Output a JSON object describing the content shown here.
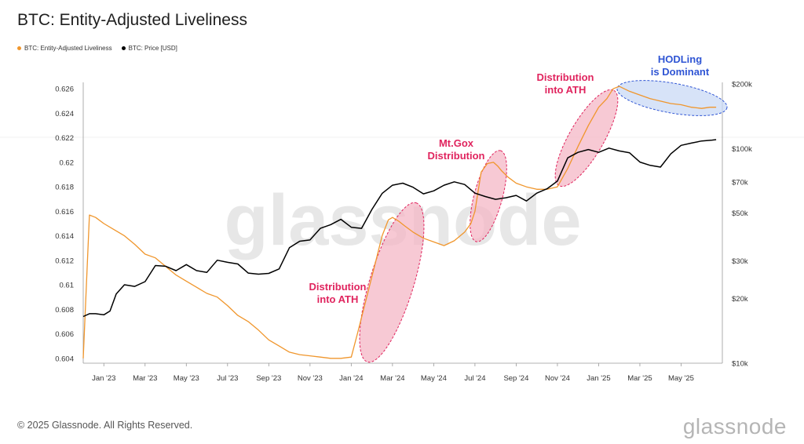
{
  "title": "BTC: Entity-Adjusted Liveliness",
  "footer": "© 2025 Glassnode. All Rights Reserved.",
  "brand": "glassnode",
  "watermark": "glassnode",
  "colors": {
    "liveliness": "#f0962c",
    "price": "#000000",
    "highlight_pink": "#f4b7c6",
    "highlight_blue": "#c9daf6",
    "annotation_pink": "#e0245e",
    "annotation_blue": "#2f55d4"
  },
  "chart_data": {
    "type": "line",
    "title": "BTC: Entity-Adjusted Liveliness",
    "x_ticks": [
      "Jan '23",
      "Mar '23",
      "May '23",
      "Jul '23",
      "Sep '23",
      "Nov '23",
      "Jan '24",
      "Mar '24",
      "May '24",
      "Jul '24",
      "Sep '24",
      "Nov '24",
      "Jan '25",
      "Mar '25",
      "May '25"
    ],
    "x_tick_index": [
      1,
      3,
      5,
      7,
      9,
      11,
      13,
      15,
      17,
      19,
      21,
      23,
      25,
      27,
      29
    ],
    "x_range": [
      0,
      31
    ],
    "y_left_ticks": [
      "0.626",
      "0.624",
      "0.622",
      "0.62",
      "0.618",
      "0.616",
      "0.614",
      "0.612",
      "0.61",
      "0.608",
      "0.606",
      "0.604"
    ],
    "y_left_range": [
      0.6036,
      0.6264
    ],
    "y_right_ticks": [
      {
        "label": "$200k",
        "value": 200000
      },
      {
        "label": "$100k",
        "value": 100000
      },
      {
        "label": "$70k",
        "value": 70000
      },
      {
        "label": "$50k",
        "value": 50000
      },
      {
        "label": "$30k",
        "value": 30000
      },
      {
        "label": "$20k",
        "value": 20000
      },
      {
        "label": "$10k",
        "value": 10000
      }
    ],
    "y_right_scale": "log",
    "y_right_range": [
      10000,
      200000
    ],
    "grid": false,
    "legend_position": "top-left",
    "series": [
      {
        "name": "BTC: Entity-Adjusted Liveliness",
        "axis": "left",
        "color": "#f0962c",
        "x": [
          0.0,
          0.3,
          0.6,
          1.0,
          1.5,
          2.0,
          2.5,
          3.0,
          3.5,
          4.0,
          4.5,
          5.0,
          5.5,
          6.0,
          6.5,
          7.0,
          7.5,
          8.0,
          8.5,
          9.0,
          9.5,
          10.0,
          10.5,
          11.0,
          11.5,
          12.0,
          12.5,
          13.0,
          13.3,
          13.6,
          13.9,
          14.2,
          14.5,
          14.8,
          15.0,
          15.3,
          15.6,
          16.0,
          16.5,
          17.0,
          17.5,
          18.0,
          18.5,
          18.8,
          19.0,
          19.3,
          19.6,
          19.9,
          20.1,
          20.3,
          20.6,
          21.0,
          21.5,
          22.0,
          22.5,
          23.0,
          23.5,
          24.0,
          24.5,
          25.0,
          25.4,
          25.7,
          26.0,
          26.5,
          27.0,
          27.5,
          28.0,
          28.5,
          29.0,
          29.5,
          30.0,
          30.4,
          30.7
        ],
        "values": [
          0.604,
          0.6157,
          0.6155,
          0.615,
          0.6145,
          0.614,
          0.6133,
          0.6125,
          0.6122,
          0.6115,
          0.6108,
          0.6103,
          0.6098,
          0.6093,
          0.609,
          0.6083,
          0.6075,
          0.607,
          0.6063,
          0.6055,
          0.605,
          0.6045,
          0.6043,
          0.6042,
          0.6041,
          0.604,
          0.604,
          0.6041,
          0.606,
          0.608,
          0.61,
          0.612,
          0.614,
          0.6153,
          0.6155,
          0.6152,
          0.6148,
          0.6143,
          0.6138,
          0.6135,
          0.6132,
          0.6136,
          0.6143,
          0.615,
          0.616,
          0.6192,
          0.6199,
          0.62,
          0.6197,
          0.6193,
          0.6188,
          0.6183,
          0.618,
          0.6178,
          0.6178,
          0.618,
          0.6195,
          0.6213,
          0.623,
          0.6245,
          0.6252,
          0.626,
          0.6262,
          0.6258,
          0.6255,
          0.6252,
          0.625,
          0.6248,
          0.6247,
          0.6245,
          0.6244,
          0.6245,
          0.6245
        ]
      },
      {
        "name": "BTC: Price [USD]",
        "axis": "right",
        "color": "#000000",
        "x": [
          0.0,
          0.3,
          0.6,
          1.0,
          1.3,
          1.6,
          2.0,
          2.5,
          3.0,
          3.5,
          4.0,
          4.5,
          5.0,
          5.5,
          6.0,
          6.5,
          7.0,
          7.5,
          8.0,
          8.5,
          9.0,
          9.5,
          10.0,
          10.5,
          11.0,
          11.5,
          12.0,
          12.5,
          13.0,
          13.5,
          14.0,
          14.5,
          15.0,
          15.5,
          16.0,
          16.5,
          17.0,
          17.5,
          18.0,
          18.5,
          19.0,
          19.5,
          20.0,
          20.5,
          21.0,
          21.5,
          22.0,
          22.5,
          23.0,
          23.5,
          24.0,
          24.5,
          25.0,
          25.5,
          26.0,
          26.5,
          27.0,
          27.5,
          28.0,
          28.5,
          29.0,
          29.5,
          30.0,
          30.5,
          30.7
        ],
        "values": [
          16500,
          17000,
          17000,
          16800,
          17500,
          21000,
          23200,
          22800,
          24000,
          28500,
          28300,
          27000,
          28800,
          27000,
          26500,
          30200,
          29500,
          29000,
          26300,
          26000,
          26200,
          27500,
          34500,
          37000,
          37500,
          42500,
          44200,
          46800,
          43000,
          42500,
          52000,
          61800,
          67500,
          69000,
          66000,
          61500,
          63500,
          67500,
          70000,
          68000,
          62000,
          59800,
          58000,
          59000,
          60500,
          57000,
          62000,
          65000,
          70500,
          90500,
          96000,
          99000,
          96000,
          100500,
          97500,
          95500,
          86500,
          83500,
          82000,
          94500,
          103500,
          106000,
          108500,
          109500,
          110000
        ]
      }
    ],
    "annotations": [
      {
        "text_lines": [
          "Distribution",
          "into ATH"
        ],
        "color": "#e0245e"
      },
      {
        "text_lines": [
          "Mt.Gox",
          "Distribution"
        ],
        "color": "#e0245e"
      },
      {
        "text_lines": [
          "Distribution",
          "into ATH"
        ],
        "color": "#e0245e"
      },
      {
        "text_lines": [
          "HODLing",
          "is Dominant"
        ],
        "color": "#2f55d4"
      }
    ]
  }
}
